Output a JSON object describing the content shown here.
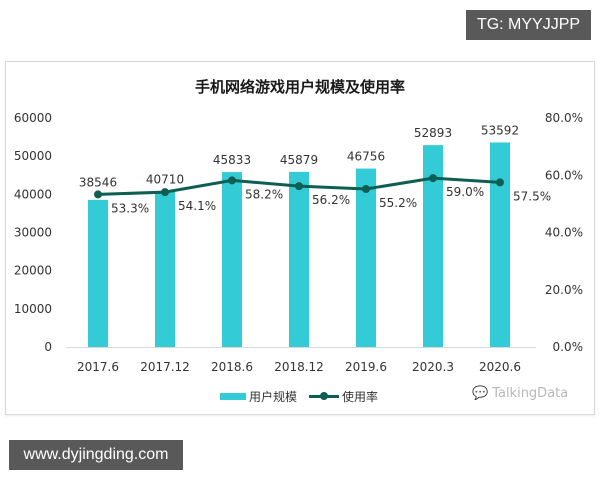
{
  "watermarks": {
    "top": "TG: MYYJJPP",
    "bottom": "www.dyjingding.com"
  },
  "brand": {
    "icon": "wechat-icon",
    "text": "TalkingData"
  },
  "legend": {
    "bar_label": "用户规模",
    "line_label": "使用率"
  },
  "chart_data": {
    "type": "bar+line",
    "title": "手机网络游戏用户规模及使用率",
    "categories": [
      "2017.6",
      "2017.12",
      "2018.6",
      "2018.12",
      "2019.6",
      "2020.3",
      "2020.6"
    ],
    "series": [
      {
        "name": "用户规模",
        "type": "bar",
        "axis": "left",
        "color": "#33ccd6",
        "values": [
          38546,
          40710,
          45833,
          45879,
          46756,
          52893,
          53592
        ]
      },
      {
        "name": "使用率",
        "type": "line",
        "axis": "right",
        "color": "#0e5e52",
        "values": [
          53.3,
          54.1,
          58.2,
          56.2,
          55.2,
          59.0,
          57.5
        ],
        "labels": [
          "53.3%",
          "54.1%",
          "58.2%",
          "56.2%",
          "55.2%",
          "59.0%",
          "57.5%"
        ]
      }
    ],
    "left_axis": {
      "ticks": [
        "0",
        "10000",
        "20000",
        "30000",
        "40000",
        "50000",
        "60000"
      ],
      "ylim": [
        0,
        60000
      ]
    },
    "right_axis": {
      "ticks": [
        "0.0%",
        "20.0%",
        "40.0%",
        "60.0%",
        "80.0%"
      ],
      "ylim": [
        0,
        80
      ]
    },
    "xlabel": "",
    "ylabel": "",
    "grid": false,
    "legend_position": "bottom"
  }
}
